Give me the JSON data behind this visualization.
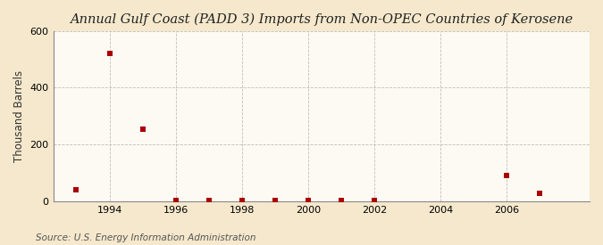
{
  "title": "Annual Gulf Coast (PADD 3) Imports from Non-OPEC Countries of Kerosene",
  "ylabel": "Thousand Barrels",
  "source": "Source: U.S. Energy Information Administration",
  "background_color": "#f5e8cc",
  "plot_background_color": "#fdfaf3",
  "marker_color": "#aa0000",
  "marker_size": 4,
  "years": [
    1993,
    1994,
    1995,
    1996,
    1997,
    1998,
    1999,
    2000,
    2001,
    2002,
    2006,
    2007
  ],
  "values": [
    40,
    520,
    255,
    2,
    2,
    2,
    2,
    2,
    2,
    2,
    90,
    28
  ],
  "xlim": [
    1992.3,
    2008.5
  ],
  "ylim": [
    0,
    600
  ],
  "yticks": [
    0,
    200,
    400,
    600
  ],
  "xticks": [
    1994,
    1996,
    1998,
    2000,
    2002,
    2004,
    2006
  ],
  "grid_color": "#b0b0b0",
  "title_fontsize": 10.5,
  "ylabel_fontsize": 8.5,
  "tick_fontsize": 8,
  "source_fontsize": 7.5
}
